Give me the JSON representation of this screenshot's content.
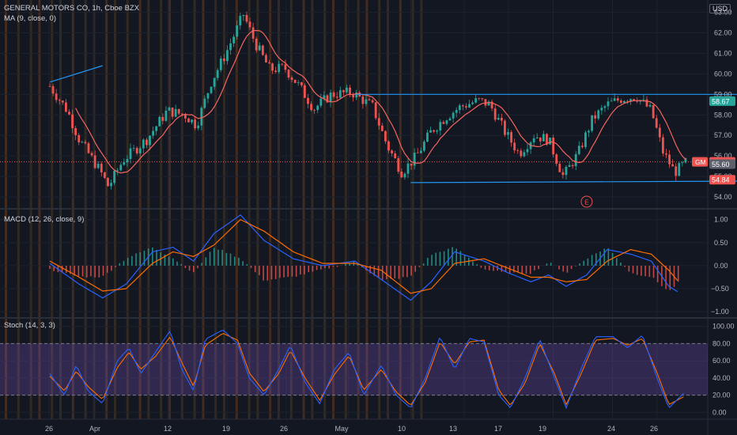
{
  "header": {
    "symbol_line": "GENERAL MOTORS CO, 1h, Cboe BZX",
    "ma_line": "MA (9, close, 0)",
    "currency": "USD"
  },
  "macd": {
    "label": "MACD (12, 26, close, 9)"
  },
  "stoch": {
    "label": "Stoch (14, 3, 3)"
  },
  "price_axis": {
    "ticks": [
      "63.00",
      "62.00",
      "61.00",
      "60.00",
      "59.00",
      "58.00",
      "57.00",
      "56.00",
      "55.00",
      "54.00"
    ]
  },
  "macd_axis": {
    "ticks": [
      "1.00",
      "0.50",
      "0.00",
      "−0.50",
      "−1.00"
    ]
  },
  "stoch_axis": {
    "ticks": [
      "100.00",
      "80.00",
      "60.00",
      "40.00",
      "20.00",
      "0.00"
    ]
  },
  "time_axis": {
    "ticks": [
      "26",
      "Apr",
      "12",
      "19",
      "26",
      "May",
      "10",
      "13",
      "17",
      "19",
      "24",
      "26"
    ]
  },
  "price_tags": {
    "target": "58.67",
    "symbol": "GM",
    "last": "55.71",
    "entry": "55.60",
    "stop": "54.84"
  },
  "earnings_marker": "E",
  "colors": {
    "bg": "#131722",
    "up": "#26a69a",
    "down": "#ef5350",
    "ma": "#f5655f",
    "macd": "#2962ff",
    "signal": "#ff6d00",
    "stoch_k": "#2962ff",
    "stoch_d": "#ff6d00",
    "stoch_band": "#7e57c2",
    "trendline": "#2196f3",
    "target_zone": "#26a69a",
    "stop_zone": "#ef5350"
  },
  "chart_data": [
    {
      "type": "candlestick",
      "title": "GENERAL MOTORS CO, 1h, Cboe BZX",
      "ylim": [
        53.5,
        63.6
      ],
      "x_ticks": [
        "26",
        "Apr",
        "12",
        "19",
        "26",
        "May",
        "10",
        "13",
        "17",
        "19",
        "24",
        "26"
      ],
      "close_path": [
        {
          "x": 0.0,
          "v": 59.4
        },
        {
          "x": 0.6,
          "v": 58.2
        },
        {
          "x": 1.0,
          "v": 56.8
        },
        {
          "x": 1.7,
          "v": 55.3
        },
        {
          "x": 2.0,
          "v": 54.5
        },
        {
          "x": 2.5,
          "v": 55.8
        },
        {
          "x": 3.3,
          "v": 56.8
        },
        {
          "x": 4.0,
          "v": 58.2
        },
        {
          "x": 4.6,
          "v": 58.0
        },
        {
          "x": 5.0,
          "v": 57.5
        },
        {
          "x": 5.5,
          "v": 59.6
        },
        {
          "x": 6.0,
          "v": 61.0
        },
        {
          "x": 6.6,
          "v": 62.9
        },
        {
          "x": 7.0,
          "v": 61.5
        },
        {
          "x": 7.5,
          "v": 60.2
        },
        {
          "x": 8.0,
          "v": 60.3
        },
        {
          "x": 8.5,
          "v": 59.4
        },
        {
          "x": 9.0,
          "v": 58.3
        },
        {
          "x": 9.6,
          "v": 59.0
        },
        {
          "x": 10.3,
          "v": 59.1
        },
        {
          "x": 11.0,
          "v": 58.4
        },
        {
          "x": 11.5,
          "v": 56.5
        },
        {
          "x": 12.0,
          "v": 55.2
        },
        {
          "x": 12.5,
          "v": 56.0
        },
        {
          "x": 13.0,
          "v": 57.2
        },
        {
          "x": 13.5,
          "v": 57.9
        },
        {
          "x": 14.0,
          "v": 58.4
        },
        {
          "x": 14.6,
          "v": 58.7
        },
        {
          "x": 15.0,
          "v": 58.5
        },
        {
          "x": 15.5,
          "v": 57.2
        },
        {
          "x": 16.0,
          "v": 56.1
        },
        {
          "x": 16.5,
          "v": 57.0
        },
        {
          "x": 17.0,
          "v": 56.8
        },
        {
          "x": 17.5,
          "v": 55.0
        },
        {
          "x": 18.0,
          "v": 56.1
        },
        {
          "x": 18.5,
          "v": 57.8
        },
        {
          "x": 19.0,
          "v": 58.5
        },
        {
          "x": 19.5,
          "v": 58.8
        },
        {
          "x": 20.0,
          "v": 58.9
        },
        {
          "x": 20.5,
          "v": 58.2
        },
        {
          "x": 20.9,
          "v": 56.2
        },
        {
          "x": 21.3,
          "v": 55.2
        },
        {
          "x": 21.7,
          "v": 55.7
        }
      ],
      "ma": {
        "name": "MA (9, close, 0)",
        "period": 9
      },
      "trendlines": [
        {
          "from": {
            "x": 0.0,
            "v": 59.6
          },
          "to": {
            "x": 1.8,
            "v": 60.4
          }
        },
        {
          "from": {
            "x": 10.4,
            "v": 59.0
          },
          "to": {
            "x": 29.0,
            "v": 59.0
          }
        },
        {
          "from": {
            "x": 12.3,
            "v": 54.7
          },
          "to": {
            "x": 28.0,
            "v": 54.8
          }
        }
      ],
      "position": {
        "target": 58.67,
        "entry": 55.6,
        "stop": 54.84,
        "last": 55.71,
        "x_from": 23.5,
        "x_to": 25.7
      },
      "earnings": {
        "x": 18.3,
        "label": "E"
      }
    },
    {
      "type": "line",
      "title": "MACD (12, 26, close, 9)",
      "ylim": [
        -1.1,
        1.2
      ],
      "x_ticks": [
        "26",
        "Apr",
        "12",
        "19",
        "26",
        "May",
        "10",
        "13",
        "17",
        "19",
        "24",
        "26"
      ],
      "series": [
        {
          "name": "MACD",
          "points": [
            {
              "x": 0.0,
              "v": 0.05
            },
            {
              "x": 1.0,
              "v": -0.4
            },
            {
              "x": 1.8,
              "v": -0.7
            },
            {
              "x": 2.6,
              "v": -0.4
            },
            {
              "x": 3.5,
              "v": 0.3
            },
            {
              "x": 4.2,
              "v": 0.4
            },
            {
              "x": 4.9,
              "v": 0.1
            },
            {
              "x": 5.6,
              "v": 0.7
            },
            {
              "x": 6.5,
              "v": 1.1
            },
            {
              "x": 7.3,
              "v": 0.55
            },
            {
              "x": 8.3,
              "v": 0.15
            },
            {
              "x": 9.3,
              "v": 0.0
            },
            {
              "x": 10.4,
              "v": 0.1
            },
            {
              "x": 11.3,
              "v": -0.3
            },
            {
              "x": 12.3,
              "v": -0.75
            },
            {
              "x": 13.0,
              "v": -0.35
            },
            {
              "x": 13.8,
              "v": 0.3
            },
            {
              "x": 14.8,
              "v": 0.1
            },
            {
              "x": 15.6,
              "v": -0.15
            },
            {
              "x": 16.4,
              "v": -0.35
            },
            {
              "x": 17.0,
              "v": -0.2
            },
            {
              "x": 17.6,
              "v": -0.45
            },
            {
              "x": 18.3,
              "v": -0.2
            },
            {
              "x": 19.0,
              "v": 0.35
            },
            {
              "x": 19.8,
              "v": 0.25
            },
            {
              "x": 20.5,
              "v": 0.1
            },
            {
              "x": 21.1,
              "v": -0.45
            },
            {
              "x": 21.5,
              "v": -0.6
            }
          ]
        },
        {
          "name": "Signal",
          "points": [
            {
              "x": 0.0,
              "v": 0.1
            },
            {
              "x": 1.0,
              "v": -0.25
            },
            {
              "x": 1.8,
              "v": -0.55
            },
            {
              "x": 2.6,
              "v": -0.5
            },
            {
              "x": 3.5,
              "v": 0.05
            },
            {
              "x": 4.2,
              "v": 0.3
            },
            {
              "x": 4.9,
              "v": 0.2
            },
            {
              "x": 5.6,
              "v": 0.45
            },
            {
              "x": 6.5,
              "v": 1.0
            },
            {
              "x": 7.3,
              "v": 0.75
            },
            {
              "x": 8.3,
              "v": 0.3
            },
            {
              "x": 9.3,
              "v": 0.05
            },
            {
              "x": 10.4,
              "v": 0.05
            },
            {
              "x": 11.3,
              "v": -0.1
            },
            {
              "x": 12.3,
              "v": -0.6
            },
            {
              "x": 13.0,
              "v": -0.5
            },
            {
              "x": 13.8,
              "v": 0.05
            },
            {
              "x": 14.8,
              "v": 0.15
            },
            {
              "x": 15.6,
              "v": -0.05
            },
            {
              "x": 16.4,
              "v": -0.25
            },
            {
              "x": 17.0,
              "v": -0.25
            },
            {
              "x": 17.6,
              "v": -0.35
            },
            {
              "x": 18.3,
              "v": -0.3
            },
            {
              "x": 19.0,
              "v": 0.1
            },
            {
              "x": 19.8,
              "v": 0.35
            },
            {
              "x": 20.5,
              "v": 0.25
            },
            {
              "x": 21.1,
              "v": -0.1
            },
            {
              "x": 21.5,
              "v": -0.4
            }
          ]
        }
      ]
    },
    {
      "type": "line",
      "title": "Stoch (14, 3, 3)",
      "ylim": [
        -8,
        108
      ],
      "x_ticks": [
        "26",
        "Apr",
        "12",
        "19",
        "26",
        "May",
        "10",
        "13",
        "17",
        "19",
        "24",
        "26"
      ],
      "bands": [
        20,
        80
      ],
      "series": [
        {
          "name": "%K",
          "points": [
            {
              "x": 0.0,
              "v": 45
            },
            {
              "x": 0.5,
              "v": 20
            },
            {
              "x": 0.9,
              "v": 55
            },
            {
              "x": 1.3,
              "v": 25
            },
            {
              "x": 1.8,
              "v": 10
            },
            {
              "x": 2.3,
              "v": 60
            },
            {
              "x": 2.7,
              "v": 75
            },
            {
              "x": 3.1,
              "v": 45
            },
            {
              "x": 3.6,
              "v": 70
            },
            {
              "x": 4.1,
              "v": 95
            },
            {
              "x": 4.5,
              "v": 50
            },
            {
              "x": 4.9,
              "v": 25
            },
            {
              "x": 5.3,
              "v": 85
            },
            {
              "x": 5.9,
              "v": 96
            },
            {
              "x": 6.4,
              "v": 80
            },
            {
              "x": 6.8,
              "v": 40
            },
            {
              "x": 7.3,
              "v": 20
            },
            {
              "x": 7.8,
              "v": 50
            },
            {
              "x": 8.2,
              "v": 78
            },
            {
              "x": 8.7,
              "v": 35
            },
            {
              "x": 9.2,
              "v": 10
            },
            {
              "x": 9.7,
              "v": 50
            },
            {
              "x": 10.2,
              "v": 70
            },
            {
              "x": 10.7,
              "v": 20
            },
            {
              "x": 11.3,
              "v": 55
            },
            {
              "x": 11.8,
              "v": 20
            },
            {
              "x": 12.3,
              "v": 5
            },
            {
              "x": 12.8,
              "v": 40
            },
            {
              "x": 13.3,
              "v": 88
            },
            {
              "x": 13.8,
              "v": 50
            },
            {
              "x": 14.3,
              "v": 86
            },
            {
              "x": 14.8,
              "v": 82
            },
            {
              "x": 15.3,
              "v": 20
            },
            {
              "x": 15.7,
              "v": 5
            },
            {
              "x": 16.2,
              "v": 40
            },
            {
              "x": 16.7,
              "v": 85
            },
            {
              "x": 17.2,
              "v": 40
            },
            {
              "x": 17.6,
              "v": 5
            },
            {
              "x": 18.1,
              "v": 50
            },
            {
              "x": 18.6,
              "v": 88
            },
            {
              "x": 19.2,
              "v": 88
            },
            {
              "x": 19.7,
              "v": 75
            },
            {
              "x": 20.2,
              "v": 90
            },
            {
              "x": 20.7,
              "v": 40
            },
            {
              "x": 21.1,
              "v": 5
            },
            {
              "x": 21.6,
              "v": 22
            }
          ]
        },
        {
          "name": "%D",
          "points": [
            {
              "x": 0.0,
              "v": 42
            },
            {
              "x": 0.5,
              "v": 25
            },
            {
              "x": 0.9,
              "v": 48
            },
            {
              "x": 1.3,
              "v": 30
            },
            {
              "x": 1.8,
              "v": 15
            },
            {
              "x": 2.3,
              "v": 52
            },
            {
              "x": 2.7,
              "v": 70
            },
            {
              "x": 3.1,
              "v": 50
            },
            {
              "x": 3.6,
              "v": 65
            },
            {
              "x": 4.1,
              "v": 88
            },
            {
              "x": 4.5,
              "v": 58
            },
            {
              "x": 4.9,
              "v": 30
            },
            {
              "x": 5.3,
              "v": 78
            },
            {
              "x": 5.9,
              "v": 92
            },
            {
              "x": 6.4,
              "v": 84
            },
            {
              "x": 6.8,
              "v": 46
            },
            {
              "x": 7.3,
              "v": 24
            },
            {
              "x": 7.8,
              "v": 45
            },
            {
              "x": 8.2,
              "v": 72
            },
            {
              "x": 8.7,
              "v": 40
            },
            {
              "x": 9.2,
              "v": 14
            },
            {
              "x": 9.7,
              "v": 44
            },
            {
              "x": 10.2,
              "v": 66
            },
            {
              "x": 10.7,
              "v": 26
            },
            {
              "x": 11.3,
              "v": 50
            },
            {
              "x": 11.8,
              "v": 24
            },
            {
              "x": 12.3,
              "v": 8
            },
            {
              "x": 12.8,
              "v": 35
            },
            {
              "x": 13.3,
              "v": 82
            },
            {
              "x": 13.8,
              "v": 56
            },
            {
              "x": 14.3,
              "v": 82
            },
            {
              "x": 14.8,
              "v": 84
            },
            {
              "x": 15.3,
              "v": 26
            },
            {
              "x": 15.7,
              "v": 8
            },
            {
              "x": 16.2,
              "v": 34
            },
            {
              "x": 16.7,
              "v": 80
            },
            {
              "x": 17.2,
              "v": 45
            },
            {
              "x": 17.6,
              "v": 9
            },
            {
              "x": 18.1,
              "v": 44
            },
            {
              "x": 18.6,
              "v": 84
            },
            {
              "x": 19.2,
              "v": 86
            },
            {
              "x": 19.7,
              "v": 78
            },
            {
              "x": 20.2,
              "v": 86
            },
            {
              "x": 20.7,
              "v": 46
            },
            {
              "x": 21.1,
              "v": 9
            },
            {
              "x": 21.6,
              "v": 18
            }
          ]
        }
      ]
    }
  ]
}
